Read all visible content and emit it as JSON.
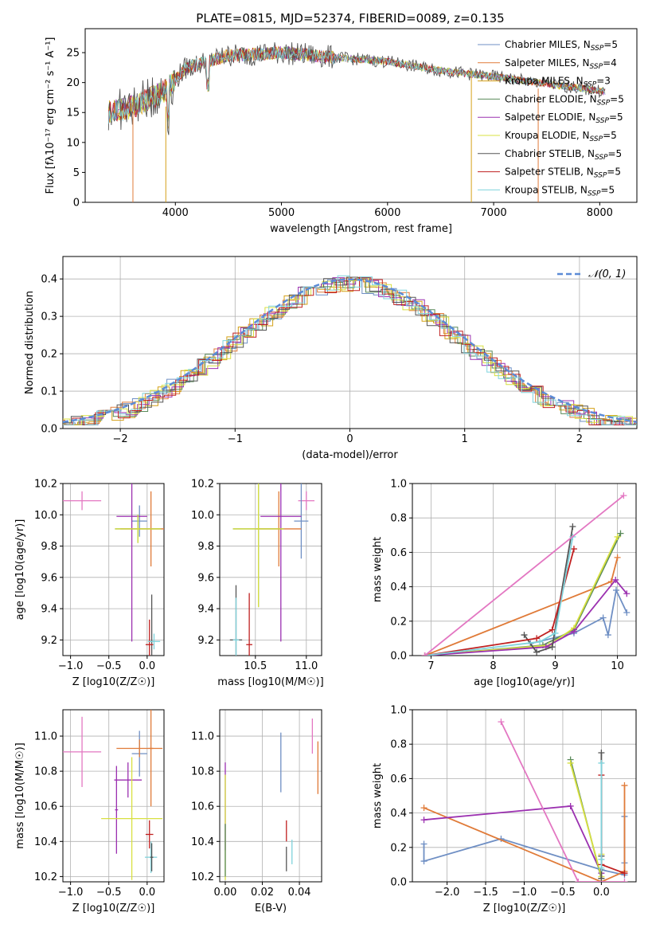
{
  "chart_data": [
    {
      "panel": "spectrum",
      "type": "line",
      "title": "PLATE=0815, MJD=52374, FIBERID=0089, z=0.135",
      "xlabel": "wavelength [Angstrom, rest frame]",
      "ylabel": "Flux [fλ10⁻¹⁷ erg cm⁻² s⁻¹ A⁻¹]",
      "xlim": [
        3150,
        8350
      ],
      "ylim": [
        0,
        29
      ],
      "xticks": [
        "4000",
        "5000",
        "6000",
        "7000",
        "8000"
      ],
      "yticks": [
        "0",
        "5",
        "10",
        "15",
        "20",
        "25"
      ],
      "grid": false,
      "legend": "top-right",
      "continuum_x": [
        3370,
        3600,
        3900,
        4100,
        4500,
        5000,
        5500,
        6000,
        6500,
        7000,
        7500,
        8050
      ],
      "continuum_y": [
        15.0,
        16.0,
        18.5,
        22.5,
        24.5,
        25.0,
        24.2,
        23.5,
        22.0,
        21.0,
        19.8,
        18.5
      ],
      "series": [
        {
          "name": "Chabrier MILES, N_SSP=5",
          "color": "#6f8fc4"
        },
        {
          "name": "Salpeter MILES, N_SSP=4",
          "color": "#e07b39"
        },
        {
          "name": "Kroupa MILES, N_SSP=3",
          "color": "#d4a017"
        },
        {
          "name": "Chabrier ELODIE, N_SSP=5",
          "color": "#5a8a5a"
        },
        {
          "name": "Salpeter ELODIE, N_SSP=5",
          "color": "#9b30b0"
        },
        {
          "name": "Kroupa ELODIE, N_SSP=5",
          "color": "#d8e040"
        },
        {
          "name": "Chabrier STELIB, N_SSP=5",
          "color": "#555555"
        },
        {
          "name": "Salpeter STELIB, N_SSP=5",
          "color": "#c02020"
        },
        {
          "name": "Kroupa STELIB, N_SSP=5",
          "color": "#7fd3dc"
        }
      ]
    },
    {
      "panel": "residuals",
      "type": "histogram",
      "xlabel": "(data-model)/error",
      "ylabel": "Normed distribution",
      "xlim": [
        -2.5,
        2.5
      ],
      "ylim": [
        0,
        0.46
      ],
      "xticks": [
        "−2",
        "−1",
        "0",
        "1",
        "2"
      ],
      "yticks": [
        "0.0",
        "0.1",
        "0.2",
        "0.3",
        "0.4"
      ],
      "grid": true,
      "legend": "top-right",
      "normal_curve_label": "𝒩(0, 1)",
      "normal_curve_color": "#5b8bd6"
    },
    {
      "panel": "age_vs_Z",
      "type": "errorbar",
      "xlabel": "Z [log10(Z/Z☉)]",
      "ylabel": "age  [log10(age/yr)]",
      "xlim": [
        -1.1,
        0.22
      ],
      "ylim": [
        9.1,
        10.2
      ],
      "xticks": [
        "−1.0",
        "−0.5",
        "0.0"
      ],
      "yticks": [
        "9.2",
        "9.4",
        "9.6",
        "9.8",
        "10.0",
        "10.2"
      ],
      "points": [
        {
          "x": -0.85,
          "y": 10.09,
          "xerr": 0.25,
          "yerr": 0.06,
          "color": "#e377c2"
        },
        {
          "x": -0.1,
          "y": 9.96,
          "xerr": 0.1,
          "yerr": 0.1,
          "color": "#6f8fc4"
        },
        {
          "x": 0.05,
          "y": 9.91,
          "xerr": 0.4,
          "yerr": 0.24,
          "color": "#e07b39"
        },
        {
          "x": -0.2,
          "y": 9.99,
          "xerr": 0.2,
          "yerr": 0.8,
          "color": "#9b30b0"
        },
        {
          "x": -0.12,
          "y": 9.91,
          "xerr": 0.3,
          "yerr": 0.09,
          "color": "#5a8a5a"
        },
        {
          "x": -0.12,
          "y": 9.91,
          "xerr": 0.3,
          "yerr": 0.09,
          "color": "#d8e040"
        },
        {
          "x": 0.06,
          "y": 9.19,
          "xerr": 0.02,
          "yerr": 0.3,
          "color": "#555555"
        },
        {
          "x": 0.03,
          "y": 9.17,
          "xerr": 0.05,
          "yerr": 0.16,
          "color": "#c02020"
        },
        {
          "x": 0.09,
          "y": 9.19,
          "xerr": 0.08,
          "yerr": 0.05,
          "color": "#7fd3dc"
        }
      ]
    },
    {
      "panel": "age_vs_mass",
      "type": "errorbar",
      "xlabel": "mass [log10(M/M☉)]",
      "ylabel": "",
      "xlim": [
        10.15,
        11.15
      ],
      "ylim": [
        9.1,
        10.2
      ],
      "xticks": [
        "10.5",
        "11.0"
      ],
      "yticks": [
        "9.2",
        "9.4",
        "9.6",
        "9.8",
        "10.0",
        "10.2"
      ],
      "points": [
        {
          "x": 11.0,
          "y": 10.09,
          "xerr": 0.08,
          "yerr": 0.06,
          "color": "#e377c2"
        },
        {
          "x": 10.95,
          "y": 9.96,
          "xerr": 0.07,
          "yerr": 0.24,
          "color": "#6f8fc4"
        },
        {
          "x": 10.73,
          "y": 9.91,
          "xerr": 0.22,
          "yerr": 0.24,
          "color": "#e07b39"
        },
        {
          "x": 10.75,
          "y": 9.99,
          "xerr": 0.2,
          "yerr": 0.8,
          "color": "#9b30b0"
        },
        {
          "x": 10.53,
          "y": 9.91,
          "xerr": 0.25,
          "yerr": 0.5,
          "color": "#5a8a5a"
        },
        {
          "x": 10.53,
          "y": 9.91,
          "xerr": 0.25,
          "yerr": 0.5,
          "color": "#d8e040"
        },
        {
          "x": 10.31,
          "y": 9.2,
          "xerr": 0.06,
          "yerr": 0.35,
          "color": "#555555"
        },
        {
          "x": 10.44,
          "y": 9.17,
          "xerr": 0.03,
          "yerr": 0.33,
          "color": "#c02020"
        },
        {
          "x": 10.31,
          "y": 9.2,
          "xerr": 0.03,
          "yerr": 0.27,
          "color": "#7fd3dc"
        }
      ]
    },
    {
      "panel": "weight_vs_age",
      "type": "line",
      "xlabel": "age  [log10(age/yr)]",
      "ylabel": "mass weight",
      "xlim": [
        6.7,
        10.3
      ],
      "ylim": [
        0,
        1.0
      ],
      "xticks": [
        "7",
        "8",
        "9",
        "10"
      ],
      "yticks": [
        "0.0",
        "0.2",
        "0.4",
        "0.6",
        "0.8",
        "1.0"
      ],
      "series": [
        {
          "color": "#6f8fc4",
          "x": [
            8.6,
            9.3,
            9.77,
            9.85,
            9.98,
            10.15
          ],
          "y": [
            0.07,
            0.13,
            0.22,
            0.12,
            0.38,
            0.25
          ]
        },
        {
          "color": "#e07b39",
          "x": [
            6.9,
            9.9,
            10.0
          ],
          "y": [
            0.0,
            0.43,
            0.57
          ]
        },
        {
          "color": "#5a8a5a",
          "x": [
            6.9,
            8.8,
            9.3,
            10.05
          ],
          "y": [
            0.0,
            0.06,
            0.15,
            0.71
          ]
        },
        {
          "color": "#d8e040",
          "x": [
            6.9,
            8.9,
            9.3,
            10.0
          ],
          "y": [
            0.0,
            0.06,
            0.16,
            0.69
          ]
        },
        {
          "color": "#9b30b0",
          "x": [
            6.9,
            8.85,
            9.3,
            9.97,
            10.15
          ],
          "y": [
            0.0,
            0.05,
            0.14,
            0.44,
            0.36
          ]
        },
        {
          "color": "#555555",
          "x": [
            8.5,
            8.7,
            8.95,
            9.28
          ],
          "y": [
            0.12,
            0.02,
            0.05,
            0.75
          ]
        },
        {
          "color": "#c02020",
          "x": [
            6.9,
            8.7,
            8.95,
            9.3
          ],
          "y": [
            0.0,
            0.1,
            0.15,
            0.62
          ]
        },
        {
          "color": "#7fd3dc",
          "x": [
            6.9,
            8.75,
            9.0,
            9.28
          ],
          "y": [
            0.0,
            0.08,
            0.13,
            0.69
          ]
        },
        {
          "color": "#e377c2",
          "x": [
            6.9,
            10.1
          ],
          "y": [
            0.0,
            0.93
          ]
        }
      ]
    },
    {
      "panel": "mass_vs_Z",
      "type": "errorbar",
      "xlabel": "Z [log10(Z/Z☉)]",
      "ylabel": "mass [log10(M/M☉)]",
      "xlim": [
        -1.1,
        0.22
      ],
      "ylim": [
        10.17,
        11.15
      ],
      "xticks": [
        "−1.0",
        "−0.5",
        "0.0"
      ],
      "yticks": [
        "10.2",
        "10.4",
        "10.6",
        "10.8",
        "11.0"
      ],
      "points": [
        {
          "x": -0.85,
          "y": 10.91,
          "xerr": 0.25,
          "yerr": 0.2,
          "color": "#e377c2"
        },
        {
          "x": -0.1,
          "y": 10.9,
          "xerr": 0.1,
          "yerr": 0.13,
          "color": "#6f8fc4"
        },
        {
          "x": -0.1,
          "y": 10.93,
          "xerr": 0.3,
          "yerr": 0.05,
          "color": "#e07b39"
        },
        {
          "x": 0.05,
          "y": 10.93,
          "xerr": 0.03,
          "yerr": 0.33,
          "color": "#e07b39"
        },
        {
          "x": -0.25,
          "y": 10.75,
          "xerr": 0.18,
          "yerr": 0.1,
          "color": "#9b30b0"
        },
        {
          "x": -0.4,
          "y": 10.58,
          "xerr": 0.02,
          "yerr": 0.25,
          "color": "#9b30b0"
        },
        {
          "x": -0.2,
          "y": 10.53,
          "xerr": 0.4,
          "yerr": 0.35,
          "color": "#d8e040"
        },
        {
          "x": 0.03,
          "y": 10.44,
          "xerr": 0.05,
          "yerr": 0.08,
          "color": "#c02020"
        },
        {
          "x": 0.05,
          "y": 10.31,
          "xerr": 0.08,
          "yerr": 0.09,
          "color": "#7fd3dc"
        },
        {
          "x": 0.06,
          "y": 10.31,
          "xerr": 0.02,
          "yerr": 0.08,
          "color": "#555555"
        }
      ]
    },
    {
      "panel": "mass_vs_EBV",
      "type": "errorbar",
      "xlabel": "E(B-V)",
      "ylabel": "",
      "xlim": [
        -0.003,
        0.052
      ],
      "ylim": [
        10.17,
        11.15
      ],
      "xticks": [
        "0.00",
        "0.02",
        "0.04"
      ],
      "yticks": [
        "10.2",
        "10.4",
        "10.6",
        "10.8",
        "11.0"
      ],
      "points": [
        {
          "x": 0.047,
          "y": 11.0,
          "yerr": 0.1,
          "color": "#e377c2"
        },
        {
          "x": 0.05,
          "y": 10.82,
          "yerr": 0.15,
          "color": "#e07b39"
        },
        {
          "x": 0.03,
          "y": 10.85,
          "yerr": 0.17,
          "color": "#6f8fc4"
        },
        {
          "x": 0.0,
          "y": 10.6,
          "yerr": 0.25,
          "color": "#9b30b0"
        },
        {
          "x": 0.0,
          "y": 10.48,
          "yerr": 0.3,
          "color": "#d8e040"
        },
        {
          "x": 0.0,
          "y": 10.35,
          "yerr": 0.15,
          "color": "#5a8a5a"
        },
        {
          "x": 0.033,
          "y": 10.46,
          "yerr": 0.06,
          "color": "#c02020"
        },
        {
          "x": 0.036,
          "y": 10.34,
          "yerr": 0.07,
          "color": "#7fd3dc"
        },
        {
          "x": 0.033,
          "y": 10.3,
          "yerr": 0.07,
          "color": "#555555"
        }
      ]
    },
    {
      "panel": "weight_vs_Z",
      "type": "line",
      "xlabel": "Z [log10(Z/Z☉)]",
      "ylabel": "mass weight",
      "xlim": [
        -2.45,
        0.45
      ],
      "ylim": [
        0,
        1.0
      ],
      "xticks": [
        "−2.0",
        "−1.5",
        "−1.0",
        "−0.5",
        "0.0"
      ],
      "yticks": [
        "0.0",
        "0.2",
        "0.4",
        "0.6",
        "0.8",
        "1.0"
      ],
      "series": [
        {
          "color": "#6f8fc4",
          "x": [
            -2.3,
            -2.3,
            -1.3,
            0.0,
            0.3,
            0.3,
            0.3
          ],
          "y": [
            0.22,
            0.12,
            0.25,
            0.07,
            0.04,
            0.11,
            0.38
          ]
        },
        {
          "color": "#e07b39",
          "x": [
            -2.3,
            0.0,
            0.3,
            0.3
          ],
          "y": [
            0.43,
            0.0,
            0.06,
            0.56
          ]
        },
        {
          "color": "#9b30b0",
          "x": [
            -2.3,
            -0.4,
            0.0
          ],
          "y": [
            0.36,
            0.44,
            0.05
          ]
        },
        {
          "color": "#5a8a5a",
          "x": [
            -0.4,
            0.0,
            0.0
          ],
          "y": [
            0.71,
            0.02,
            0.15
          ]
        },
        {
          "color": "#d8e040",
          "x": [
            -0.4,
            0.0,
            0.0
          ],
          "y": [
            0.69,
            0.03,
            0.16
          ]
        },
        {
          "color": "#555555",
          "x": [
            0.0,
            0.0,
            0.0
          ],
          "y": [
            0.02,
            0.75,
            0.15
          ]
        },
        {
          "color": "#c02020",
          "x": [
            0.0,
            0.0,
            0.3
          ],
          "y": [
            0.62,
            0.1,
            0.05
          ]
        },
        {
          "color": "#7fd3dc",
          "x": [
            0.0,
            0.0,
            0.0
          ],
          "y": [
            0.08,
            0.69,
            0.13
          ]
        },
        {
          "color": "#e377c2",
          "x": [
            -1.3,
            -0.3,
            0.3
          ],
          "y": [
            0.93,
            0.0,
            0.0
          ]
        }
      ]
    }
  ]
}
